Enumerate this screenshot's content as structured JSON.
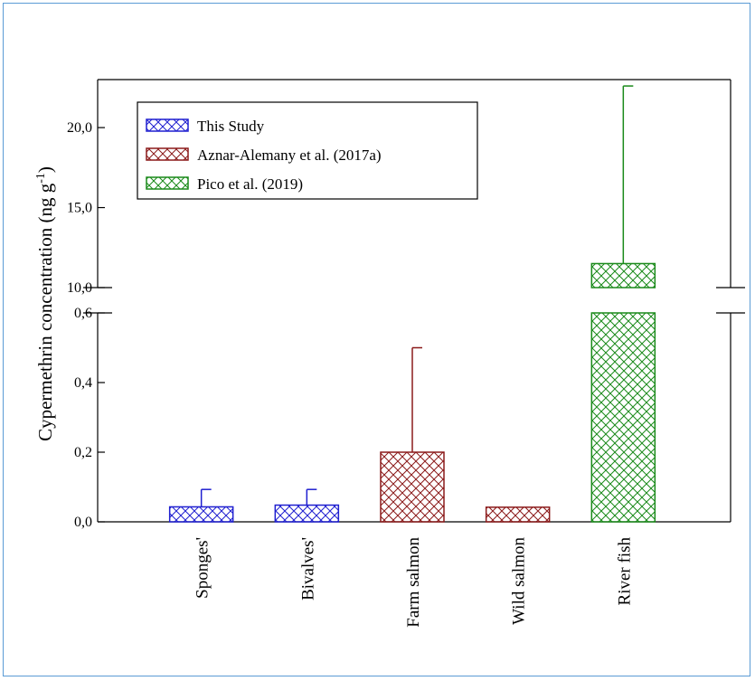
{
  "chart_data": {
    "type": "bar",
    "categories": [
      "Sponges'",
      "Bivalves'",
      "Farm salmon",
      "Wild salmon",
      "River fish"
    ],
    "series": [
      {
        "name": "This Study",
        "color": "#1f1fd0",
        "values": [
          0.043,
          0.048,
          null,
          null,
          null
        ],
        "error_upper": [
          0.093,
          0.093,
          null,
          null,
          null
        ]
      },
      {
        "name": "Aznar-Alemany et al. (2017a)",
        "color": "#8b1a1a",
        "values": [
          null,
          null,
          0.2,
          0.042,
          null
        ],
        "error_upper": [
          null,
          null,
          0.5,
          null,
          null
        ]
      },
      {
        "name": "Pico et al. (2019)",
        "color": "#1a8a1a",
        "values": [
          null,
          null,
          null,
          null,
          11.5
        ],
        "error_upper": [
          null,
          null,
          null,
          null,
          22.6
        ]
      }
    ],
    "ylabel_main": "Cypermethrin concentration (ng g",
    "ylabel_sup": "-1",
    "ylabel_close": ")",
    "y_axis_break": {
      "lower_range": [
        0,
        0.6
      ],
      "upper_range": [
        10,
        23
      ]
    },
    "yticks_lower": [
      "0,0",
      "0,2",
      "0,4",
      "0,6"
    ],
    "yticks_upper": [
      "10,0",
      "15,0",
      "20,0"
    ],
    "legend_position": "top-left",
    "grid": false
  }
}
